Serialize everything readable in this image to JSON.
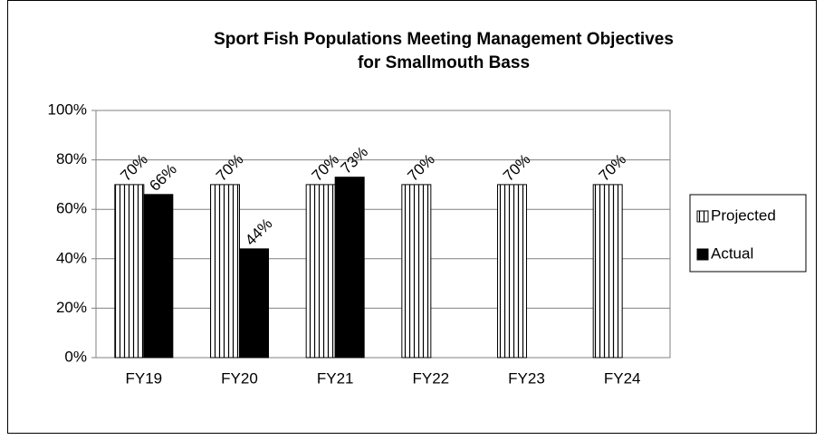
{
  "chart_data": {
    "type": "bar",
    "title": [
      "Sport Fish Populations Meeting Management Objectives",
      "for Smallmouth Bass"
    ],
    "categories": [
      "FY19",
      "FY20",
      "FY21",
      "FY22",
      "FY23",
      "FY24"
    ],
    "series": [
      {
        "name": "Projected",
        "color": "#ffffff",
        "hatch": "vertical",
        "values": [
          70,
          70,
          70,
          70,
          70,
          70
        ],
        "value_labels": [
          "70%",
          "70%",
          "70%",
          "70%",
          "70%",
          "70%"
        ]
      },
      {
        "name": "Actual",
        "color": "#000000",
        "values": [
          66,
          44,
          73,
          null,
          null,
          null
        ],
        "value_labels": [
          "66%",
          "44%",
          "73%",
          null,
          null,
          null
        ]
      }
    ],
    "ylim": [
      0,
      100
    ],
    "yticks": [
      {
        "value": 0,
        "label": "0%"
      },
      {
        "value": 20,
        "label": "20%"
      },
      {
        "value": 40,
        "label": "40%"
      },
      {
        "value": 60,
        "label": "60%"
      },
      {
        "value": 80,
        "label": "80%"
      },
      {
        "value": 100,
        "label": "100%"
      }
    ],
    "grid": true,
    "legend": "right"
  }
}
